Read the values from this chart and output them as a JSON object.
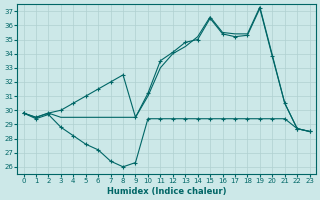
{
  "xlabel": "Humidex (Indice chaleur)",
  "bg_color": "#cce8e8",
  "line_color": "#006666",
  "grid_color": "#b0d0d0",
  "xlim": [
    -0.5,
    23.5
  ],
  "ylim": [
    25.5,
    37.5
  ],
  "yticks": [
    26,
    27,
    28,
    29,
    30,
    31,
    32,
    33,
    34,
    35,
    36,
    37
  ],
  "xticks": [
    0,
    1,
    2,
    3,
    4,
    5,
    6,
    7,
    8,
    9,
    10,
    11,
    12,
    13,
    14,
    15,
    16,
    17,
    18,
    19,
    20,
    21,
    22,
    23
  ],
  "line1_x": [
    0,
    1,
    2,
    3,
    4,
    5,
    6,
    7,
    8,
    9,
    10,
    11,
    12,
    13,
    14,
    15,
    16,
    17,
    18,
    19,
    20,
    21,
    22,
    23
  ],
  "line1_y": [
    29.8,
    29.5,
    29.8,
    30.0,
    30.5,
    31.0,
    31.5,
    32.0,
    32.5,
    29.5,
    31.2,
    33.5,
    34.1,
    34.8,
    35.0,
    36.5,
    35.4,
    35.2,
    35.3,
    37.2,
    33.8,
    30.5,
    28.7,
    28.5
  ],
  "line2_x": [
    0,
    1,
    2,
    3,
    4,
    5,
    6,
    7,
    8,
    9,
    10,
    11,
    12,
    13,
    14,
    15,
    16,
    17,
    18,
    19,
    20,
    21,
    22,
    23
  ],
  "line2_y": [
    29.8,
    29.5,
    29.8,
    29.5,
    29.5,
    29.5,
    29.5,
    29.5,
    29.5,
    29.5,
    31.0,
    33.0,
    34.0,
    34.5,
    35.2,
    36.6,
    35.5,
    35.4,
    35.4,
    37.3,
    33.9,
    30.5,
    28.7,
    28.5
  ],
  "line3_x": [
    0,
    1,
    2,
    3,
    4,
    5,
    6,
    7,
    8,
    9,
    10,
    11,
    12,
    13,
    14,
    15,
    16,
    17,
    18,
    19,
    20,
    21,
    22,
    23
  ],
  "line3_y": [
    29.8,
    29.4,
    29.7,
    28.8,
    28.2,
    27.6,
    27.2,
    26.4,
    26.0,
    26.3,
    29.4,
    29.4,
    29.4,
    29.4,
    29.4,
    29.4,
    29.4,
    29.4,
    29.4,
    29.4,
    29.4,
    29.4,
    28.7,
    28.5
  ]
}
